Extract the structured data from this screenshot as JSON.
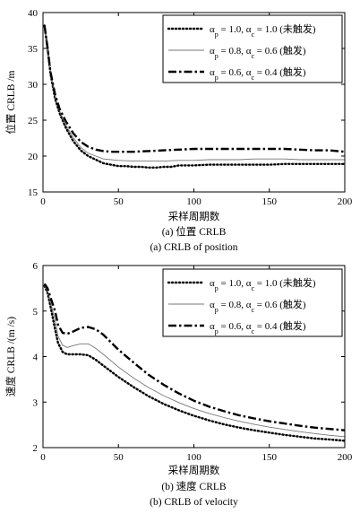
{
  "chart_data": [
    {
      "type": "line",
      "title": "(a) 位置 CRLB",
      "subtitle": "(a) CRLB of position",
      "xlabel": "采样周期数",
      "ylabel": "位置 CRLB /m",
      "xlim": [
        0,
        200
      ],
      "ylim": [
        15,
        40
      ],
      "xticks": [
        0,
        50,
        100,
        150,
        200
      ],
      "yticks": [
        15,
        20,
        25,
        30,
        35,
        40
      ],
      "grid": false,
      "legend_position": "top-right",
      "series": [
        {
          "name": "α_p = 1.0, α_c = 1.0 (未触发)",
          "style": "dotted",
          "x": [
            1,
            3,
            5,
            8,
            11,
            15,
            20,
            25,
            30,
            35,
            40,
            45,
            50,
            55,
            60,
            65,
            70,
            75,
            80,
            85,
            90,
            95,
            100,
            110,
            120,
            130,
            140,
            150,
            160,
            170,
            180,
            190,
            200
          ],
          "y": [
            38.2,
            35.0,
            31.5,
            28.0,
            26.0,
            24.0,
            22.1,
            20.8,
            20.0,
            19.5,
            19.0,
            18.8,
            18.6,
            18.6,
            18.5,
            18.5,
            18.4,
            18.4,
            18.5,
            18.5,
            18.7,
            18.7,
            18.7,
            18.8,
            18.8,
            18.8,
            18.8,
            18.8,
            18.9,
            18.9,
            18.9,
            18.9,
            18.9
          ]
        },
        {
          "name": "α_p = 0.8, α_c = 0.6 (触发)",
          "style": "thin",
          "x": [
            1,
            3,
            5,
            8,
            11,
            15,
            20,
            25,
            30,
            35,
            40,
            45,
            50,
            60,
            70,
            80,
            90,
            100,
            110,
            120,
            130,
            140,
            150,
            160,
            170,
            180,
            190,
            200
          ],
          "y": [
            38.2,
            35.0,
            31.5,
            28.3,
            26.3,
            24.4,
            22.6,
            21.2,
            20.4,
            20.0,
            19.6,
            19.5,
            19.4,
            19.3,
            19.3,
            19.3,
            19.4,
            19.4,
            19.5,
            19.5,
            19.5,
            19.6,
            19.6,
            19.6,
            19.5,
            19.5,
            19.5,
            19.5
          ]
        },
        {
          "name": "α_p = 0.6, α_c = 0.4 (触发)",
          "style": "dashdot",
          "x": [
            1,
            3,
            5,
            8,
            11,
            15,
            20,
            25,
            30,
            35,
            40,
            45,
            50,
            60,
            70,
            80,
            90,
            100,
            110,
            120,
            130,
            140,
            150,
            160,
            170,
            180,
            190,
            200
          ],
          "y": [
            38.2,
            35.1,
            31.7,
            28.6,
            26.6,
            24.9,
            23.2,
            22.0,
            21.3,
            20.9,
            20.7,
            20.6,
            20.6,
            20.6,
            20.7,
            20.8,
            20.9,
            21.0,
            21.0,
            21.0,
            21.0,
            21.0,
            21.0,
            21.0,
            20.9,
            20.8,
            20.8,
            20.6
          ]
        }
      ]
    },
    {
      "type": "line",
      "title": "(b) 速度 CRLB",
      "subtitle": "(b) CRLB of velocity",
      "xlabel": "采样周期数",
      "ylabel": "速度 CRLB /(m /s)",
      "xlim": [
        0,
        200
      ],
      "ylim": [
        2,
        6
      ],
      "xticks": [
        0,
        50,
        100,
        150,
        200
      ],
      "yticks": [
        2,
        3,
        4,
        5,
        6
      ],
      "grid": false,
      "legend_position": "top-right",
      "series": [
        {
          "name": "α_p = 1.0, α_c = 1.0 (未触发)",
          "style": "dotted",
          "x": [
            1,
            3,
            5,
            8,
            10,
            13,
            16,
            20,
            25,
            30,
            35,
            40,
            50,
            60,
            70,
            80,
            90,
            100,
            110,
            120,
            130,
            140,
            150,
            160,
            170,
            180,
            190,
            200
          ],
          "y": [
            5.55,
            5.4,
            5.1,
            4.6,
            4.3,
            4.1,
            4.05,
            4.05,
            4.05,
            4.03,
            3.93,
            3.8,
            3.55,
            3.33,
            3.13,
            2.96,
            2.82,
            2.7,
            2.6,
            2.51,
            2.44,
            2.38,
            2.33,
            2.28,
            2.24,
            2.2,
            2.18,
            2.15
          ]
        },
        {
          "name": "α_p = 0.8, α_c = 0.6 (触发)",
          "style": "thin",
          "x": [
            1,
            3,
            5,
            8,
            10,
            13,
            16,
            20,
            25,
            30,
            35,
            40,
            50,
            60,
            70,
            80,
            90,
            100,
            110,
            120,
            130,
            140,
            150,
            160,
            170,
            180,
            190,
            200
          ],
          "y": [
            5.55,
            5.45,
            5.2,
            4.8,
            4.45,
            4.25,
            4.2,
            4.24,
            4.28,
            4.28,
            4.18,
            4.05,
            3.77,
            3.53,
            3.32,
            3.14,
            2.99,
            2.86,
            2.75,
            2.66,
            2.58,
            2.51,
            2.45,
            2.4,
            2.35,
            2.31,
            2.27,
            2.24
          ]
        },
        {
          "name": "α_p = 0.6, α_c = 0.4 (触发)",
          "style": "dashdot",
          "x": [
            1,
            3,
            5,
            8,
            10,
            13,
            16,
            20,
            25,
            30,
            35,
            40,
            50,
            60,
            70,
            80,
            90,
            100,
            110,
            120,
            130,
            140,
            150,
            160,
            170,
            180,
            190,
            200
          ],
          "y": [
            5.6,
            5.5,
            5.3,
            5.0,
            4.7,
            4.52,
            4.5,
            4.55,
            4.63,
            4.65,
            4.6,
            4.48,
            4.15,
            3.87,
            3.6,
            3.38,
            3.19,
            3.03,
            2.9,
            2.8,
            2.71,
            2.64,
            2.58,
            2.53,
            2.48,
            2.44,
            2.41,
            2.38
          ]
        }
      ]
    }
  ]
}
